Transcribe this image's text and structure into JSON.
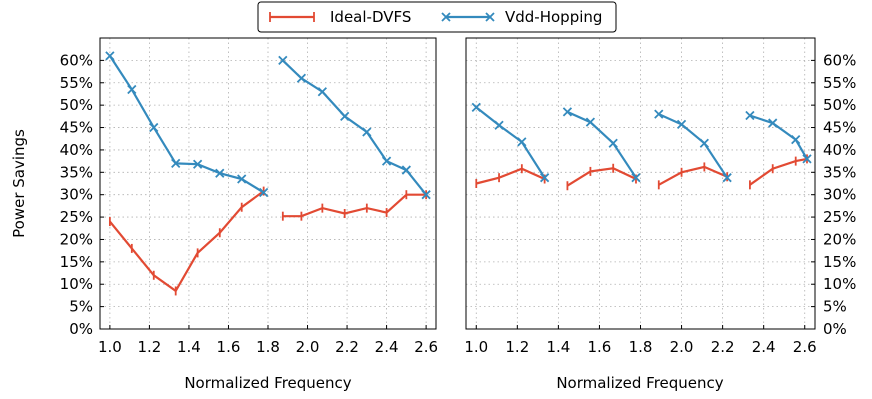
{
  "legend": {
    "placement": "top-center",
    "entries": [
      {
        "label": "Ideal-DVFS",
        "color": "#e24a33",
        "marker": "vertical-tick"
      },
      {
        "label": "Vdd-Hopping",
        "color": "#348abd",
        "marker": "x"
      }
    ]
  },
  "chart_data": [
    {
      "type": "line",
      "panel": "left",
      "xlabel": "Normalized Frequency",
      "ylabel": "Power Savings",
      "xlim": [
        0.95,
        2.65
      ],
      "ylim": [
        0,
        65
      ],
      "xticks": [
        "1.0",
        "1.2",
        "1.4",
        "1.6",
        "1.8",
        "2.0",
        "2.2",
        "2.4",
        "2.6"
      ],
      "xtick_values": [
        1.0,
        1.2,
        1.4,
        1.6,
        1.8,
        2.0,
        2.2,
        2.4,
        2.6
      ],
      "yticks": [
        "0%",
        "5%",
        "10%",
        "15%",
        "20%",
        "25%",
        "30%",
        "35%",
        "40%",
        "45%",
        "50%",
        "55%",
        "60%"
      ],
      "ytick_values": [
        0,
        5,
        10,
        15,
        20,
        25,
        30,
        35,
        40,
        45,
        50,
        55,
        60
      ],
      "yaxis_side": "left",
      "grid": true,
      "series": [
        {
          "name": "Ideal-DVFS",
          "color": "#e24a33",
          "segments": [
            {
              "x": [
                1.0,
                1.111,
                1.222,
                1.333,
                1.444,
                1.556,
                1.667,
                1.778
              ],
              "y": [
                24,
                18,
                12,
                8.5,
                17,
                21.5,
                27.2,
                30.8
              ]
            },
            {
              "x": [
                1.875,
                1.969,
                2.075,
                2.188,
                2.3,
                2.4,
                2.5,
                2.6
              ],
              "y": [
                25.2,
                25.2,
                27,
                25.8,
                27,
                26,
                30,
                30
              ]
            }
          ]
        },
        {
          "name": "Vdd-Hopping",
          "color": "#348abd",
          "segments": [
            {
              "x": [
                1.0,
                1.111,
                1.222,
                1.333,
                1.444,
                1.556,
                1.667,
                1.778
              ],
              "y": [
                61,
                53.5,
                45,
                37,
                36.8,
                34.8,
                33.5,
                30.5
              ]
            },
            {
              "x": [
                1.875,
                1.969,
                2.075,
                2.188,
                2.3,
                2.4,
                2.5,
                2.6
              ],
              "y": [
                60,
                56,
                53,
                47.5,
                44,
                37.5,
                35.5,
                30
              ]
            }
          ]
        }
      ]
    },
    {
      "type": "line",
      "panel": "right",
      "xlabel": "Normalized Frequency",
      "ylabel": "",
      "xlim": [
        0.95,
        2.65
      ],
      "ylim": [
        0,
        65
      ],
      "xticks": [
        "1.0",
        "1.2",
        "1.4",
        "1.6",
        "1.8",
        "2.0",
        "2.2",
        "2.4",
        "2.6"
      ],
      "xtick_values": [
        1.0,
        1.2,
        1.4,
        1.6,
        1.8,
        2.0,
        2.2,
        2.4,
        2.6
      ],
      "yticks": [
        "0%",
        "5%",
        "10%",
        "15%",
        "20%",
        "25%",
        "30%",
        "35%",
        "40%",
        "45%",
        "50%",
        "55%",
        "60%"
      ],
      "ytick_values": [
        0,
        5,
        10,
        15,
        20,
        25,
        30,
        35,
        40,
        45,
        50,
        55,
        60
      ],
      "yaxis_side": "right",
      "grid": true,
      "series": [
        {
          "name": "Ideal-DVFS",
          "color": "#e24a33",
          "segments": [
            {
              "x": [
                1.0,
                1.111,
                1.222,
                1.333
              ],
              "y": [
                32.5,
                33.8,
                35.8,
                33.5
              ]
            },
            {
              "x": [
                1.444,
                1.556,
                1.667,
                1.778
              ],
              "y": [
                32,
                35.2,
                35.9,
                33.5
              ]
            },
            {
              "x": [
                1.889,
                2.0,
                2.111,
                2.222
              ],
              "y": [
                32.2,
                35,
                36.2,
                34
              ]
            },
            {
              "x": [
                2.333,
                2.444,
                2.556,
                2.611
              ],
              "y": [
                32.2,
                35.8,
                37.5,
                38
              ]
            }
          ]
        },
        {
          "name": "Vdd-Hopping",
          "color": "#348abd",
          "segments": [
            {
              "x": [
                1.0,
                1.111,
                1.222,
                1.333
              ],
              "y": [
                49.5,
                45.5,
                41.8,
                33.8
              ]
            },
            {
              "x": [
                1.444,
                1.556,
                1.667,
                1.778
              ],
              "y": [
                48.5,
                46.2,
                41.5,
                33.8
              ]
            },
            {
              "x": [
                1.889,
                2.0,
                2.111,
                2.222
              ],
              "y": [
                48,
                45.7,
                41.5,
                33.8
              ]
            },
            {
              "x": [
                2.333,
                2.444,
                2.556,
                2.611
              ],
              "y": [
                47.7,
                46,
                42.3,
                38
              ]
            }
          ]
        }
      ]
    }
  ]
}
